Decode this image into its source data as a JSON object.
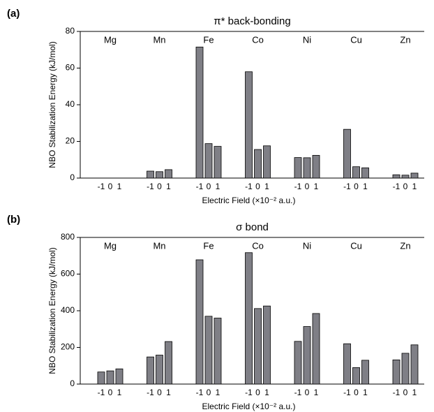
{
  "chart_data": [
    {
      "type": "bar",
      "panel_label": "(a)",
      "title": "π* back-bonding",
      "y_label": "NBO Stabilization Energy (kJ/mol)",
      "x_label": "Electric Field (×10⁻² a.u.)",
      "color": "#7f7f86",
      "ylim": [
        0,
        80
      ],
      "yticks": [
        0,
        20,
        40,
        60,
        80
      ],
      "groups": [
        {
          "name": "Mg",
          "categories": [
            "-1",
            "0",
            "1"
          ],
          "values": [
            0,
            0,
            0
          ]
        },
        {
          "name": "Mn",
          "categories": [
            "-1",
            "0",
            "1"
          ],
          "values": [
            3.8,
            3.5,
            4.6
          ]
        },
        {
          "name": "Fe",
          "categories": [
            "-1",
            "0",
            "1"
          ],
          "values": [
            71.5,
            18.8,
            17.3
          ]
        },
        {
          "name": "Co",
          "categories": [
            "-1",
            "0",
            "1"
          ],
          "values": [
            58,
            15.6,
            17.6
          ]
        },
        {
          "name": "Ni",
          "categories": [
            "-1",
            "0",
            "1"
          ],
          "values": [
            11.2,
            11.1,
            12.4
          ]
        },
        {
          "name": "Cu",
          "categories": [
            "-1",
            "0",
            "1"
          ],
          "values": [
            26.6,
            6.2,
            5.6
          ]
        },
        {
          "name": "Zn",
          "categories": [
            "-1",
            "0",
            "1"
          ],
          "values": [
            1.8,
            1.6,
            2.7
          ]
        }
      ]
    },
    {
      "type": "bar",
      "panel_label": "(b)",
      "title": "σ bond",
      "y_label": "NBO Stabilization Energy (kJ/mol)",
      "x_label": "Electric Field (×10⁻² a.u.)",
      "color": "#7f7f86",
      "ylim": [
        0,
        800
      ],
      "yticks": [
        0,
        200,
        400,
        600,
        800
      ],
      "groups": [
        {
          "name": "Mg",
          "categories": [
            "-1",
            "0",
            "1"
          ],
          "values": [
            66,
            72,
            83
          ]
        },
        {
          "name": "Mn",
          "categories": [
            "-1",
            "0",
            "1"
          ],
          "values": [
            148,
            158,
            232
          ]
        },
        {
          "name": "Fe",
          "categories": [
            "-1",
            "0",
            "1"
          ],
          "values": [
            678,
            370,
            360
          ]
        },
        {
          "name": "Co",
          "categories": [
            "-1",
            "0",
            "1"
          ],
          "values": [
            717,
            412,
            426
          ]
        },
        {
          "name": "Ni",
          "categories": [
            "-1",
            "0",
            "1"
          ],
          "values": [
            233,
            314,
            385
          ]
        },
        {
          "name": "Cu",
          "categories": [
            "-1",
            "0",
            "1"
          ],
          "values": [
            220,
            90,
            130
          ]
        },
        {
          "name": "Zn",
          "categories": [
            "-1",
            "0",
            "1"
          ],
          "values": [
            132,
            168,
            214
          ]
        }
      ]
    }
  ]
}
